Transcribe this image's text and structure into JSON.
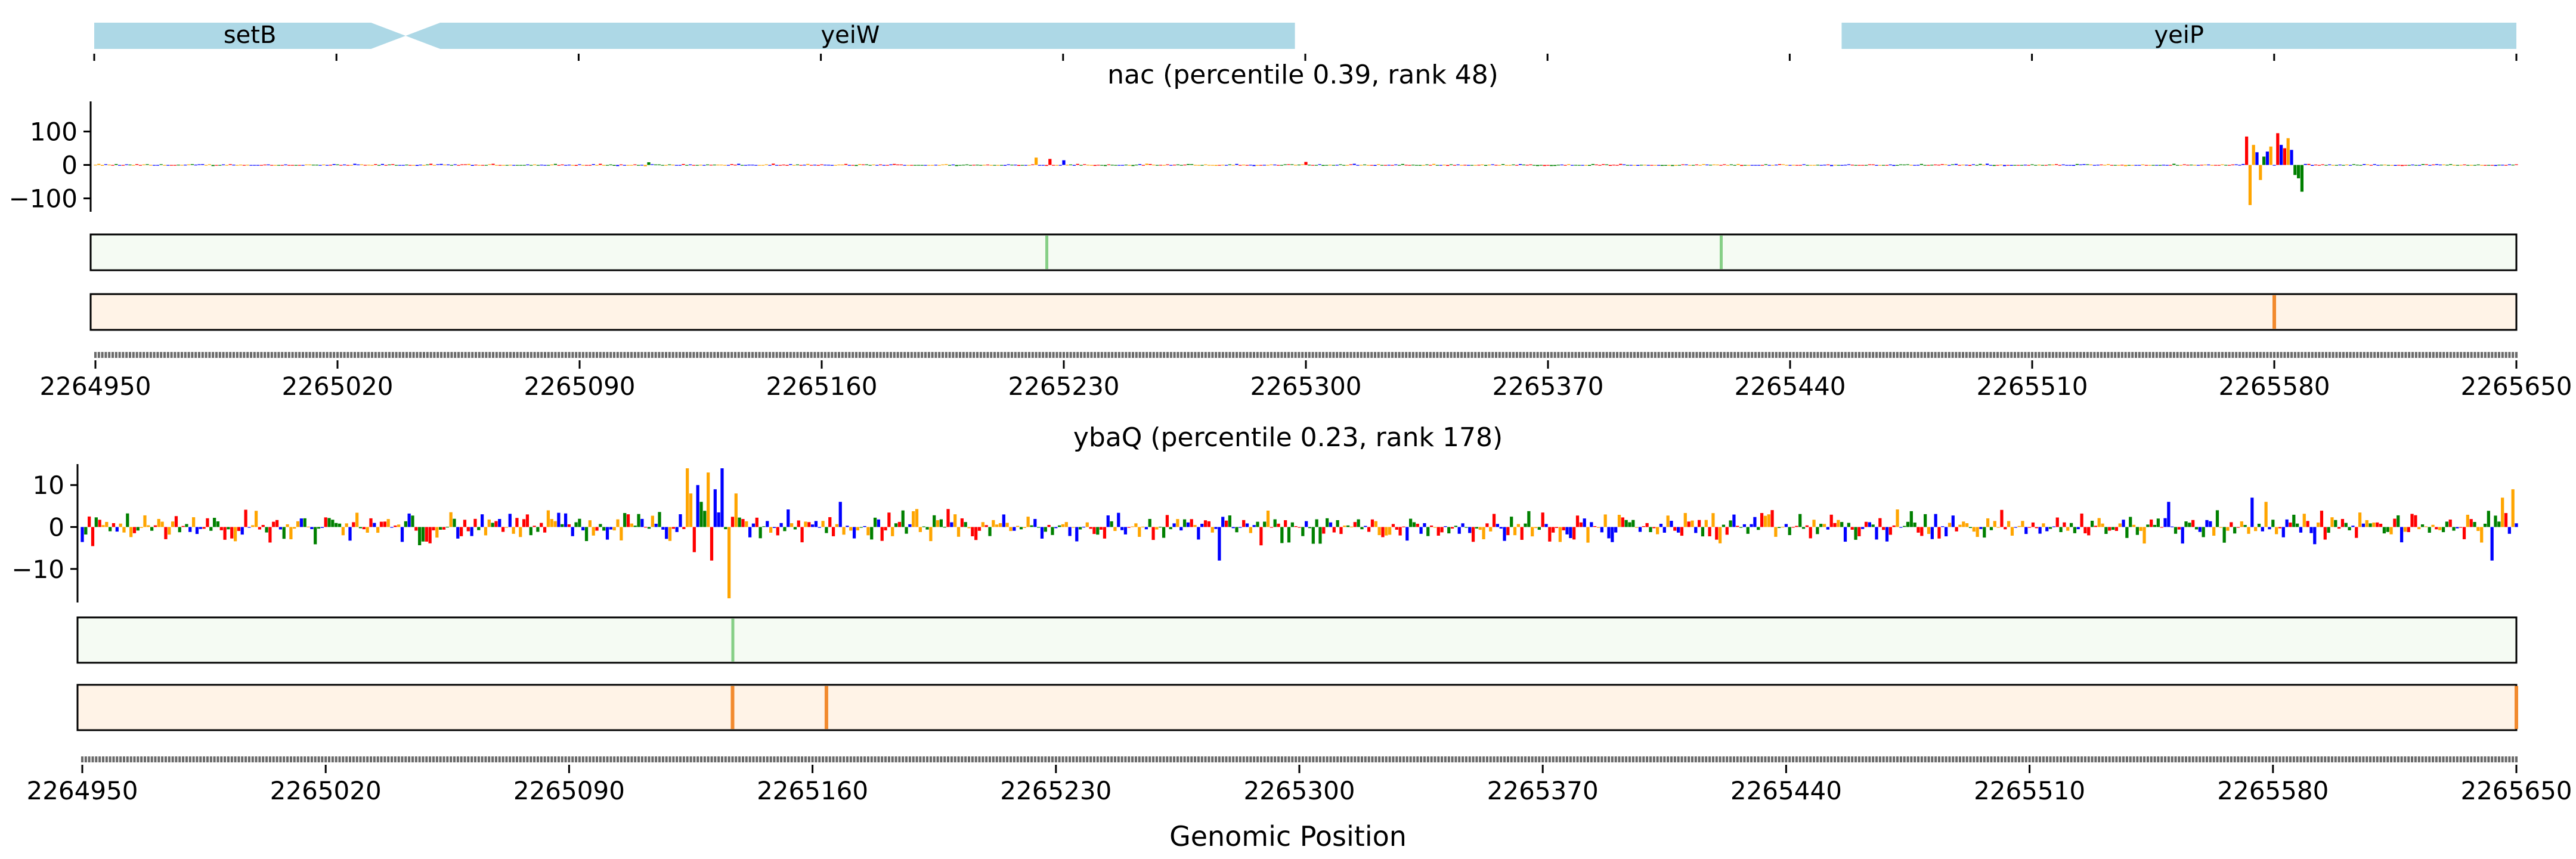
{
  "figure": {
    "xlabel": "Genomic Position",
    "colors": {
      "gene": "#add8e6",
      "A": "#008000",
      "C": "#0000ff",
      "G": "#ffa500",
      "T": "#ff0000",
      "attr_track_fill": "#f5fbf3",
      "attr_track_peak": "#86cf86",
      "pred_track_fill": "#fff3e7",
      "pred_track_peak": "#f28a2e",
      "axis": "#000000"
    }
  },
  "chart_data": [
    {
      "type": "gene-track",
      "xlim": [
        2264950,
        2265650
      ],
      "xticks": [
        2264950,
        2265020,
        2265090,
        2265160,
        2265230,
        2265300,
        2265370,
        2265440,
        2265510,
        2265580,
        2265650
      ],
      "genes": [
        {
          "name": "setB",
          "start": 2264950,
          "end": 2265040,
          "strand": "+"
        },
        {
          "name": "yeiW",
          "start": 2265040,
          "end": 2265297,
          "strand": "-"
        },
        {
          "name": "yeiP",
          "start": 2265455,
          "end": 2265650,
          "strand": "+"
        }
      ]
    },
    {
      "type": "sequence-logo",
      "title": "nac (percentile 0.39, rank 48)",
      "xlim": [
        2264950,
        2265650
      ],
      "ylim": [
        -140,
        190
      ],
      "yticks": [
        -100,
        0,
        100
      ],
      "xticks": [
        2264950,
        2265020,
        2265090,
        2265160,
        2265230,
        2265300,
        2265370,
        2265440,
        2265510,
        2265580,
        2265650
      ],
      "xticklabels": [
        "2264950",
        "2265020",
        "2265090",
        "2265160",
        "2265230",
        "2265300",
        "2265370",
        "2265440",
        "2265510",
        "2265580",
        "2265650"
      ],
      "noise": 3,
      "peaks": [
        {
          "pos": 2265222,
          "value": 22,
          "base": "G"
        },
        {
          "pos": 2265226,
          "value": 18,
          "base": "T"
        },
        {
          "pos": 2265230,
          "value": 14,
          "base": "C"
        },
        {
          "pos": 2265110,
          "value": 8,
          "base": "A"
        },
        {
          "pos": 2265300,
          "value": 9,
          "base": "T"
        },
        {
          "pos": 2265572,
          "value": 85,
          "base": "T"
        },
        {
          "pos": 2265573,
          "value": -120,
          "base": "G"
        },
        {
          "pos": 2265574,
          "value": 60,
          "base": "G"
        },
        {
          "pos": 2265575,
          "value": 38,
          "base": "C"
        },
        {
          "pos": 2265576,
          "value": -45,
          "base": "G"
        },
        {
          "pos": 2265577,
          "value": 25,
          "base": "A"
        },
        {
          "pos": 2265578,
          "value": 40,
          "base": "C"
        },
        {
          "pos": 2265579,
          "value": 55,
          "base": "G"
        },
        {
          "pos": 2265581,
          "value": 95,
          "base": "T"
        },
        {
          "pos": 2265582,
          "value": 60,
          "base": "C"
        },
        {
          "pos": 2265583,
          "value": 50,
          "base": "T"
        },
        {
          "pos": 2265584,
          "value": 80,
          "base": "G"
        },
        {
          "pos": 2265585,
          "value": 45,
          "base": "C"
        },
        {
          "pos": 2265586,
          "value": -30,
          "base": "A"
        },
        {
          "pos": 2265587,
          "value": -40,
          "base": "A"
        },
        {
          "pos": 2265588,
          "value": -80,
          "base": "A"
        }
      ],
      "attr_track_peaks": [
        2265225,
        2265420
      ],
      "pred_track_peaks": [
        2265580
      ]
    },
    {
      "type": "sequence-logo",
      "title": "ybaQ (percentile 0.23, rank 178)",
      "xlim": [
        2264950,
        2265650
      ],
      "ylim": [
        -18,
        15
      ],
      "yticks": [
        -10,
        0,
        10
      ],
      "xticks": [
        2264950,
        2265020,
        2265090,
        2265160,
        2265230,
        2265300,
        2265370,
        2265440,
        2265510,
        2265580,
        2265650
      ],
      "xticklabels": [
        "2264950",
        "2265020",
        "2265090",
        "2265160",
        "2265230",
        "2265300",
        "2265370",
        "2265440",
        "2265510",
        "2265580",
        "2265650"
      ],
      "noise": 3.5,
      "peaks": [
        {
          "pos": 2265124,
          "value": 14,
          "base": "G"
        },
        {
          "pos": 2265125,
          "value": 8,
          "base": "G"
        },
        {
          "pos": 2265126,
          "value": -6,
          "base": "T"
        },
        {
          "pos": 2265127,
          "value": 10,
          "base": "C"
        },
        {
          "pos": 2265128,
          "value": 6,
          "base": "A"
        },
        {
          "pos": 2265130,
          "value": 13,
          "base": "G"
        },
        {
          "pos": 2265131,
          "value": -8,
          "base": "T"
        },
        {
          "pos": 2265132,
          "value": 9,
          "base": "C"
        },
        {
          "pos": 2265134,
          "value": 14,
          "base": "C"
        },
        {
          "pos": 2265136,
          "value": -17,
          "base": "G"
        },
        {
          "pos": 2265138,
          "value": 8,
          "base": "G"
        },
        {
          "pos": 2265168,
          "value": 6,
          "base": "C"
        },
        {
          "pos": 2265277,
          "value": -8,
          "base": "C"
        },
        {
          "pos": 2265550,
          "value": 6,
          "base": "C"
        },
        {
          "pos": 2265564,
          "value": 4,
          "base": "A"
        },
        {
          "pos": 2265574,
          "value": 7,
          "base": "C"
        },
        {
          "pos": 2265578,
          "value": 6,
          "base": "G"
        },
        {
          "pos": 2265643,
          "value": -8,
          "base": "C"
        },
        {
          "pos": 2265646,
          "value": 7,
          "base": "G"
        },
        {
          "pos": 2265649,
          "value": 9,
          "base": "G"
        }
      ],
      "attr_track_peaks": [
        2265137
      ],
      "pred_track_peaks": [
        2265137,
        2265164,
        2265650
      ]
    }
  ]
}
